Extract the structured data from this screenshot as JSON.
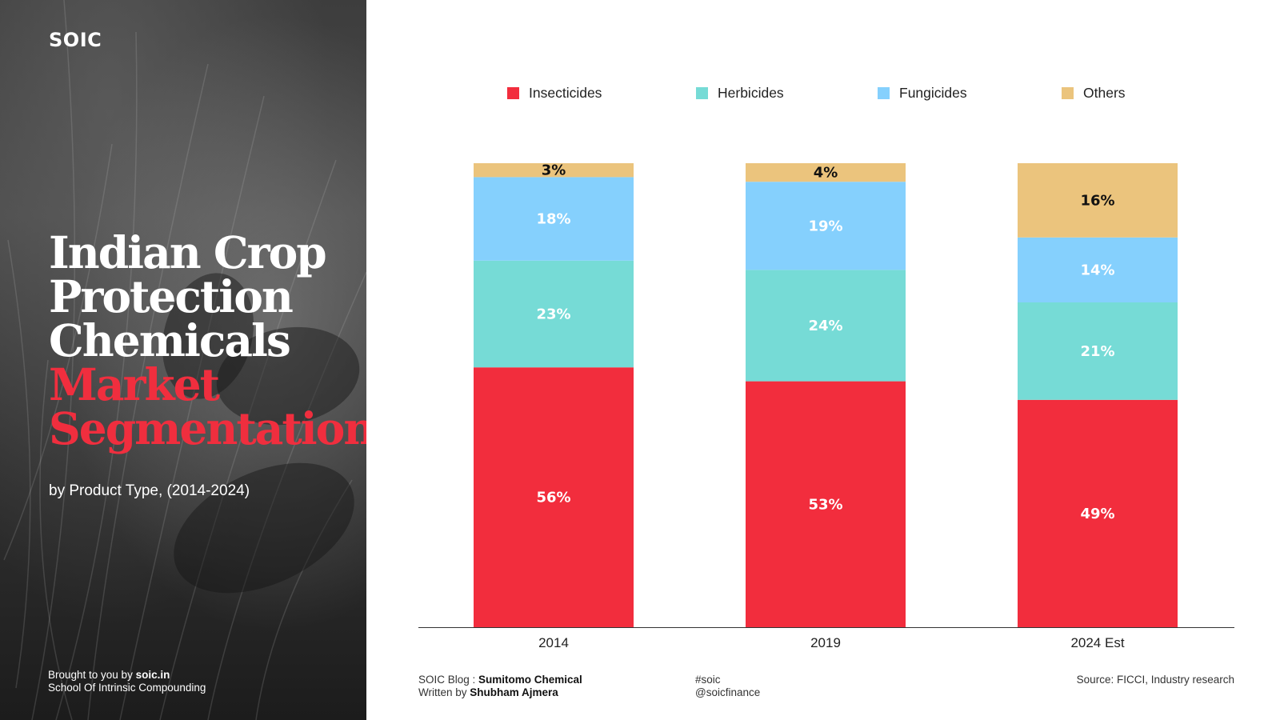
{
  "brand": "SOIC",
  "title": {
    "line1": "Indian Crop",
    "line2": "Protection",
    "line3": "Chemicals",
    "line4": "Market",
    "line5": "Segmentation"
  },
  "subtitle": "by Product Type, (2014-2024)",
  "credit": {
    "prefix": "Brought to you by ",
    "site": "soic.in",
    "org": "School Of Intrinsic Compounding"
  },
  "footer": {
    "blog_prefix": "SOIC Blog : ",
    "blog_title": "Sumitomo Chemical",
    "author_prefix": "Written by ",
    "author": "Shubham Ajmera",
    "hashtag": "#soic",
    "handle": "@soicfinance",
    "source": "Source: FICCI, Industry research"
  },
  "colors": {
    "Insecticides": "#f22d3d",
    "Herbicides": "#76dbd6",
    "Fungicides": "#85d0fd",
    "Others": "#ebc47d"
  },
  "chart_data": {
    "type": "bar",
    "stacked": true,
    "categories": [
      "2014",
      "2019",
      "2024 Est"
    ],
    "series": [
      {
        "name": "Insecticides",
        "values": [
          56,
          53,
          49
        ],
        "labels": [
          "56%",
          "53%",
          "49%"
        ]
      },
      {
        "name": "Herbicides",
        "values": [
          23,
          24,
          21
        ],
        "labels": [
          "23%",
          "24%",
          "21%"
        ]
      },
      {
        "name": "Fungicides",
        "values": [
          18,
          19,
          14
        ],
        "labels": [
          "18%",
          "19%",
          "14%"
        ]
      },
      {
        "name": "Others",
        "values": [
          3,
          4,
          16
        ],
        "labels": [
          "3%",
          "4%",
          "16%"
        ]
      }
    ],
    "ylim": [
      0,
      100
    ],
    "legend_position": "top",
    "grid": false,
    "title": "",
    "xlabel": "",
    "ylabel": ""
  }
}
